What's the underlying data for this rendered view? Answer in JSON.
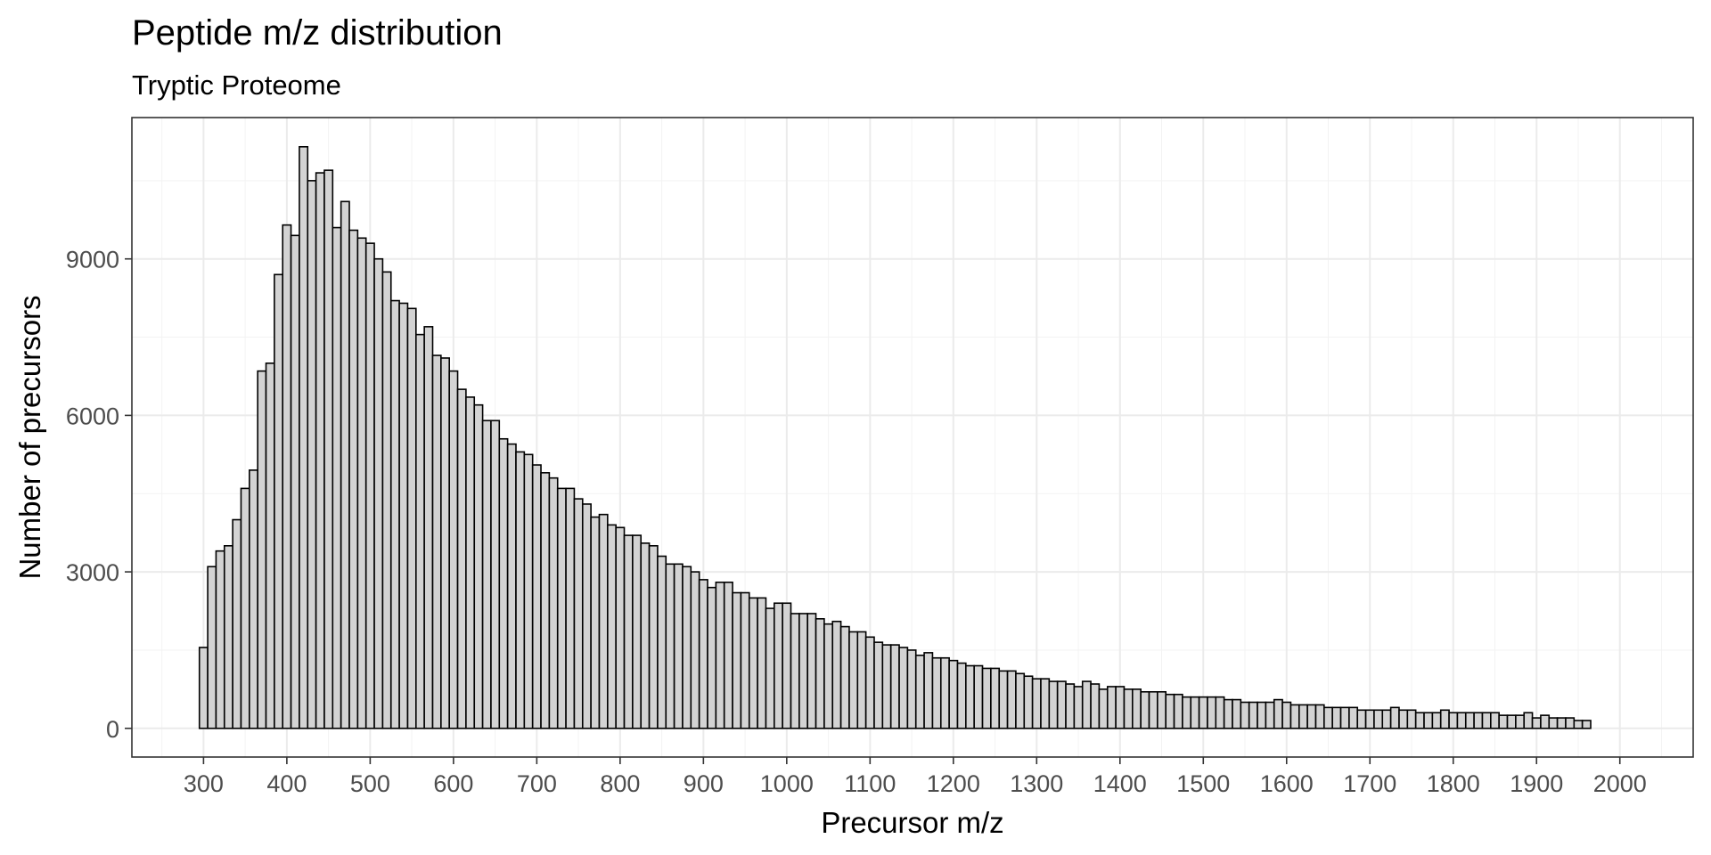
{
  "chart_data": {
    "type": "bar",
    "title": "Peptide m/z distribution",
    "subtitle": "Tryptic Proteome",
    "xlabel": "Precursor m/z",
    "ylabel": "Number of precursors",
    "xlim": [
      214,
      2088
    ],
    "ylim": [
      -550,
      11710
    ],
    "bin_start": 295,
    "bin_width": 10,
    "x_ticks": [
      300,
      400,
      500,
      600,
      700,
      800,
      900,
      1000,
      1100,
      1200,
      1300,
      1400,
      1500,
      1600,
      1700,
      1800,
      1900,
      2000
    ],
    "x_tick_labels": [
      "300",
      "400",
      "500",
      "600",
      "700",
      "800",
      "900",
      "1000",
      "1100",
      "1200",
      "1300",
      "1400",
      "1500",
      "1600",
      "1700",
      "1800",
      "1900",
      "2000"
    ],
    "y_ticks": [
      0,
      3000,
      6000,
      9000
    ],
    "y_tick_labels": [
      "0",
      "3000",
      "6000",
      "9000"
    ],
    "grid": true,
    "theme": "bw",
    "colors": {
      "bar_fill": "#d3d3d3",
      "bar_outline": "#000000",
      "grid": "#ebebeb",
      "tick_text": "#4d4d4d"
    },
    "values": [
      1550,
      3100,
      3400,
      3500,
      4000,
      4600,
      4950,
      6850,
      7000,
      8700,
      9650,
      9450,
      11150,
      10500,
      10650,
      10700,
      9600,
      10100,
      9550,
      9400,
      9300,
      9000,
      8750,
      8200,
      8150,
      8050,
      7550,
      7700,
      7150,
      7100,
      6850,
      6500,
      6350,
      6200,
      5900,
      5900,
      5550,
      5450,
      5300,
      5250,
      5050,
      4900,
      4800,
      4600,
      4600,
      4400,
      4300,
      4050,
      4100,
      3900,
      3850,
      3700,
      3700,
      3550,
      3500,
      3300,
      3150,
      3150,
      3100,
      3000,
      2850,
      2700,
      2800,
      2800,
      2600,
      2600,
      2500,
      2500,
      2300,
      2400,
      2400,
      2200,
      2200,
      2200,
      2100,
      2000,
      2050,
      1950,
      1850,
      1850,
      1750,
      1650,
      1600,
      1600,
      1550,
      1500,
      1400,
      1450,
      1350,
      1350,
      1300,
      1250,
      1200,
      1200,
      1150,
      1150,
      1100,
      1100,
      1050,
      1000,
      950,
      950,
      900,
      900,
      850,
      800,
      900,
      850,
      750,
      800,
      800,
      750,
      750,
      700,
      700,
      700,
      650,
      650,
      600,
      600,
      600,
      600,
      600,
      550,
      550,
      500,
      500,
      500,
      500,
      550,
      500,
      450,
      450,
      450,
      450,
      400,
      400,
      400,
      400,
      350,
      350,
      350,
      350,
      400,
      350,
      350,
      300,
      300,
      300,
      350,
      300,
      300,
      300,
      300,
      300,
      300,
      250,
      250,
      250,
      300,
      200,
      250,
      200,
      200,
      200,
      150,
      150
    ]
  }
}
